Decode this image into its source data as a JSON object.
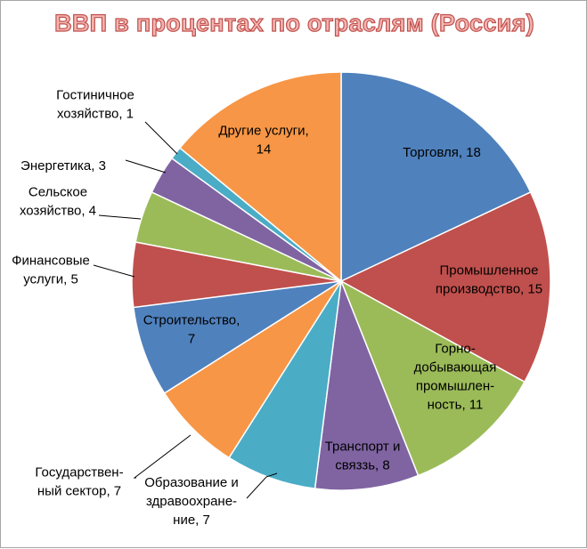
{
  "chart_data": {
    "type": "pie",
    "title": "ВВП в процентах по отраслям (Россия)",
    "slices": [
      {
        "name": "Торговля",
        "value": 18,
        "color": "#4f81bd",
        "label_lines": [
          "Торговля, 18"
        ]
      },
      {
        "name": "Промышленное производство",
        "value": 15,
        "color": "#c0504d",
        "label_lines": [
          "Промышленное",
          "производство, 15"
        ]
      },
      {
        "name": "Горнодобывающая промышленность",
        "value": 11,
        "color": "#9bbb59",
        "label_lines": [
          "Горно-",
          "добывающая",
          "промышлен-",
          "ность, 11"
        ]
      },
      {
        "name": "Транспорт и связзь",
        "value": 8,
        "color": "#8064a2",
        "label_lines": [
          "Транспорт и",
          "связзь, 8"
        ]
      },
      {
        "name": "Образование и здравоохранение",
        "value": 7,
        "color": "#4bacc6",
        "label_lines": [
          "Образование и",
          "здравоохране-",
          "ние, 7"
        ]
      },
      {
        "name": "Государственный сектор",
        "value": 7,
        "color": "#f79646",
        "label_lines": [
          "Государствен-",
          "ный сектор, 7"
        ]
      },
      {
        "name": "Строительство",
        "value": 7,
        "color": "#4f81bd",
        "label_lines": [
          "Строительство,",
          "7"
        ]
      },
      {
        "name": "Финансовые услуги",
        "value": 5,
        "color": "#c0504d",
        "label_lines": [
          "Финансовые",
          "услуги, 5"
        ]
      },
      {
        "name": "Сельское хозяйство",
        "value": 4,
        "color": "#9bbb59",
        "label_lines": [
          "Сельское",
          "хозяйство, 4"
        ]
      },
      {
        "name": "Энергетика",
        "value": 3,
        "color": "#8064a2",
        "label_lines": [
          "Энергетика, 3"
        ]
      },
      {
        "name": "Гостиничное хозяйство",
        "value": 1,
        "color": "#4bacc6",
        "label_lines": [
          "Гостиничное",
          "хозяйство, 1"
        ]
      },
      {
        "name": "Другие услуги",
        "value": 14,
        "color": "#f79646",
        "label_lines": [
          "Другие услуги,",
          "14"
        ]
      }
    ],
    "legend": "none",
    "data_labels": "category name and value"
  }
}
